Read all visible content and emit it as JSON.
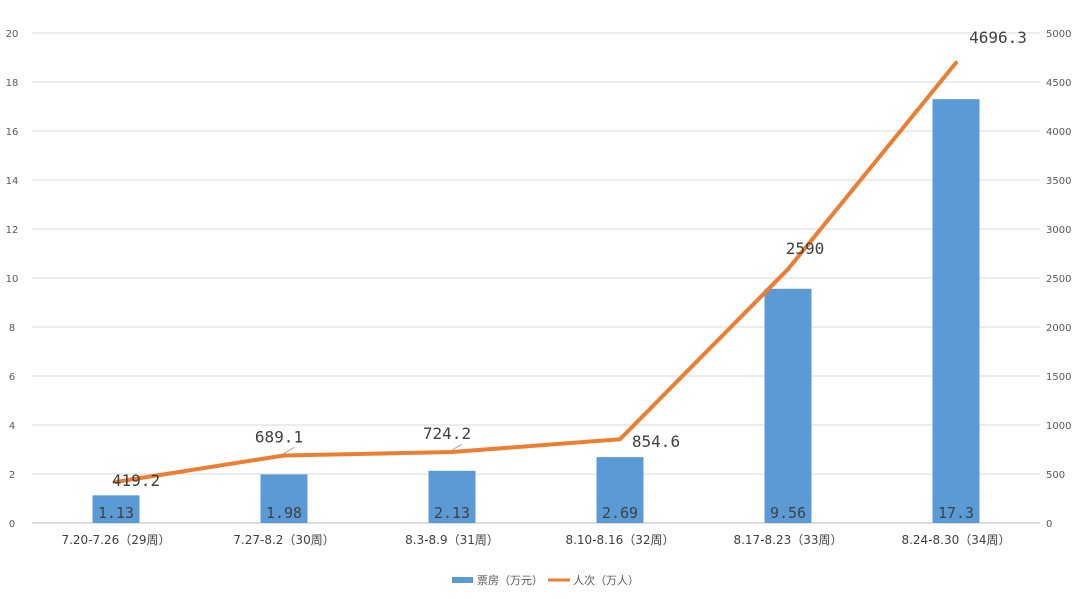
{
  "chart_data": {
    "type": "bar",
    "categories": [
      "7.20-7.26（29周）",
      "7.27-8.2（30周）",
      "8.3-8.9（31周）",
      "8.10-8.16（32周）",
      "8.17-8.23（33周）",
      "8.24-8.30（34周）"
    ],
    "series": [
      {
        "name": "票房（万元）",
        "type": "bar",
        "axis": "left",
        "color": "#5B9BD5",
        "values": [
          1.13,
          1.98,
          2.13,
          2.69,
          9.56,
          17.3
        ],
        "labels": [
          "1.13",
          "1.98",
          "2.13",
          "2.69",
          "9.56",
          "17.3"
        ]
      },
      {
        "name": "人次（万人）",
        "type": "line",
        "axis": "right",
        "color": "#ED7D31",
        "values": [
          419.2,
          689.1,
          724.2,
          854.6,
          2590,
          4696.3
        ],
        "labels": [
          "419.2",
          "689.1",
          "724.2",
          "854.6",
          "2590",
          "4696.3"
        ]
      }
    ],
    "y_left": {
      "min": 0,
      "max": 20,
      "ticks": [
        "0",
        "2",
        "4",
        "6",
        "8",
        "10",
        "12",
        "14",
        "16",
        "18",
        "20"
      ]
    },
    "y_right": {
      "min": 0,
      "max": 5000,
      "ticks": [
        "0",
        "500",
        "1000",
        "1500",
        "2000",
        "2500",
        "3000",
        "3500",
        "4000",
        "4500",
        "5000"
      ]
    },
    "grid": true,
    "legend": "bottom"
  }
}
